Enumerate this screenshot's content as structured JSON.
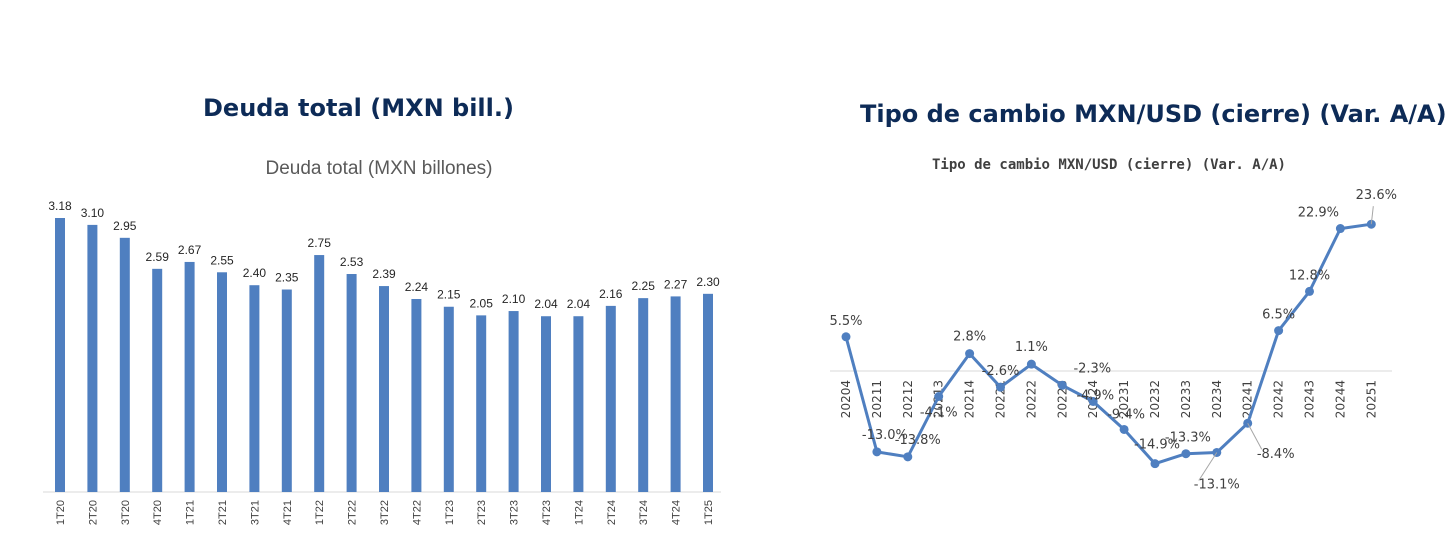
{
  "panels": {
    "left_title": "Deuda total (MXN bill.)",
    "right_title": "Tipo de cambio MXN/USD (cierre) (Var. A/A)"
  },
  "chart_data": [
    {
      "type": "bar",
      "title": "Deuda total (MXN billones)",
      "categories": [
        "1T20",
        "2T20",
        "3T20",
        "4T20",
        "1T21",
        "2T21",
        "3T21",
        "4T21",
        "1T22",
        "2T22",
        "3T22",
        "4T22",
        "1T23",
        "2T23",
        "3T23",
        "4T23",
        "1T24",
        "2T24",
        "3T24",
        "4T24",
        "1T25"
      ],
      "values": [
        3.18,
        3.1,
        2.95,
        2.59,
        2.67,
        2.55,
        2.4,
        2.35,
        2.75,
        2.53,
        2.39,
        2.24,
        2.15,
        2.05,
        2.1,
        2.04,
        2.04,
        2.16,
        2.25,
        2.27,
        2.3
      ],
      "value_labels": [
        "3.18",
        "3.10",
        "2.95",
        "2.59",
        "2.67",
        "2.55",
        "2.40",
        "2.35",
        "2.75",
        "2.53",
        "2.39",
        "2.24",
        "2.15",
        "2.05",
        "2.10",
        "2.04",
        "2.04",
        "2.16",
        "2.25",
        "2.27",
        "2.30"
      ],
      "ylim": [
        0,
        3.18
      ],
      "color": "#4f7fc0",
      "grid": false
    },
    {
      "type": "line",
      "title": "Tipo de cambio MXN/USD (cierre) (Var. A/A)",
      "categories": [
        "20204",
        "20211",
        "20212",
        "20213",
        "20214",
        "20221",
        "20222",
        "20223",
        "20224",
        "20231",
        "20232",
        "20233",
        "20234",
        "20241",
        "20242",
        "20243",
        "20244",
        "20251"
      ],
      "values": [
        5.5,
        -13.0,
        -13.8,
        -4.1,
        2.8,
        -2.6,
        1.1,
        -2.3,
        -4.9,
        -9.4,
        -14.9,
        -13.3,
        -13.1,
        -8.4,
        6.5,
        12.8,
        22.9,
        23.6
      ],
      "value_labels": [
        "5.5%",
        "-13.0%",
        "-13.8%",
        "-4.1%",
        "2.8%",
        "-2.6%",
        "1.1%",
        "-2.3%",
        "-4.9%",
        "-9.4%",
        "-14.9%",
        "-13.3%",
        "-13.1%",
        "-8.4%",
        "6.5%",
        "12.8%",
        "22.9%",
        "23.6%"
      ],
      "ylim": [
        -16,
        26
      ],
      "color": "#4f7fc0",
      "grid": false
    }
  ]
}
